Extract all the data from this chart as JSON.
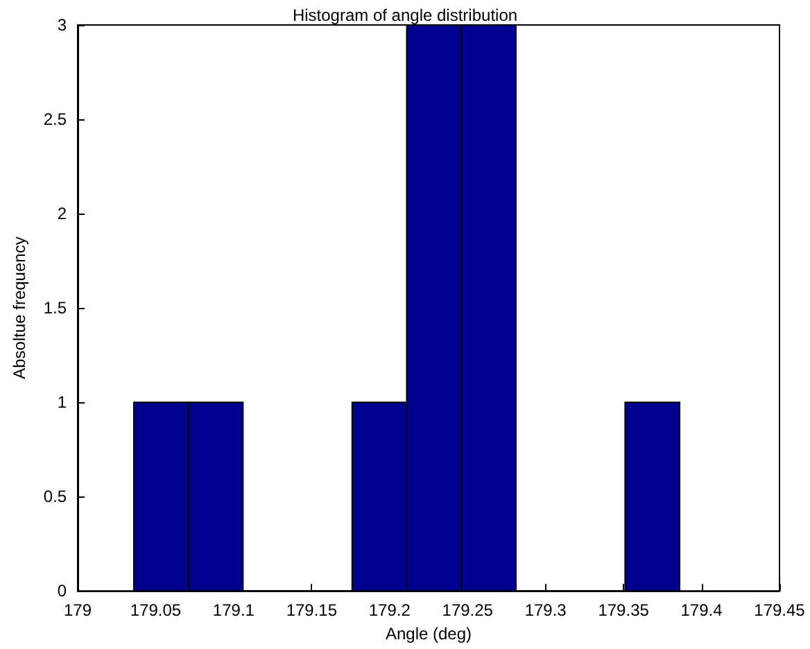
{
  "chart_data": {
    "type": "histogram",
    "title": "Histogram of angle distribution",
    "xlabel": "Angle (deg)",
    "ylabel": "Absoltue frequency",
    "bins": [
      179.036,
      179.071,
      179.106,
      179.141,
      179.176,
      179.211,
      179.246,
      179.281,
      179.316,
      179.351,
      179.386
    ],
    "values": [
      1,
      1,
      0,
      0,
      1,
      3,
      3,
      0,
      0,
      1
    ],
    "color": "#00008f",
    "xlim": [
      179,
      179.45
    ],
    "xticks": [
      179,
      179.05,
      179.1,
      179.15,
      179.2,
      179.25,
      179.3,
      179.35,
      179.4,
      179.45
    ],
    "ylim": [
      0,
      3
    ],
    "yticks": [
      0,
      0.5,
      1,
      1.5,
      2,
      2.5,
      3
    ],
    "grid": false
  }
}
